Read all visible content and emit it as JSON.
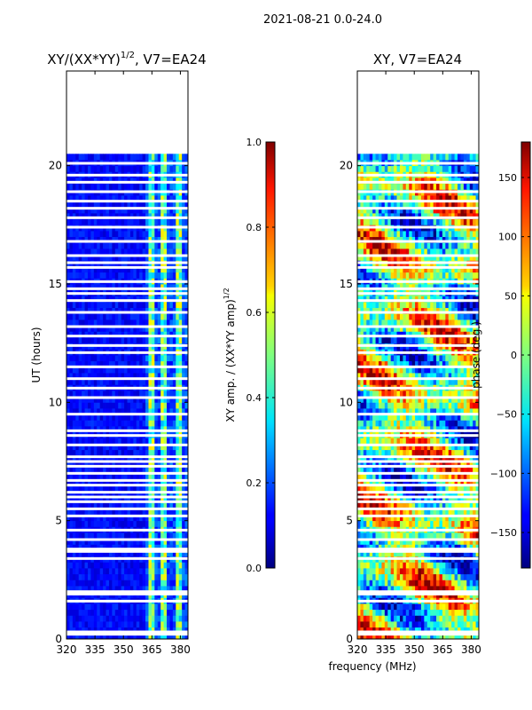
{
  "figure": {
    "suptitle": "2021-08-21 0.0-24.0",
    "xlabel": "frequency (MHz)"
  },
  "chart_data": [
    {
      "type": "heatmap",
      "title_main": "XY/(XX*YY)",
      "title_sup": "1/2",
      "title_tail": ", V7=EA24",
      "ylabel": "UT (hours)",
      "xlim": [
        320,
        384
      ],
      "ylim": [
        0,
        24
      ],
      "xticks": [
        "320",
        "335",
        "350",
        "365",
        "380"
      ],
      "xtick_values": [
        320,
        335,
        350,
        365,
        380
      ],
      "yticks": [
        "0",
        "5",
        "10",
        "15",
        "20"
      ],
      "ytick_values": [
        0,
        5,
        10,
        15,
        20
      ],
      "data_end_hours": 20.5,
      "colorbar": {
        "label_main": "XY amp. / (XX*YY amp)",
        "label_sup": "1/2",
        "range": [
          0.0,
          1.0
        ],
        "ticks": [
          "0.0",
          "0.2",
          "0.4",
          "0.6",
          "0.8",
          "1.0"
        ],
        "tick_values": [
          0.0,
          0.2,
          0.4,
          0.6,
          0.8,
          1.0
        ]
      }
    },
    {
      "type": "heatmap",
      "title": "XY, V7=EA24",
      "xlim": [
        320,
        384
      ],
      "ylim": [
        0,
        24
      ],
      "xticks": [
        "320",
        "335",
        "350",
        "365",
        "380"
      ],
      "xtick_values": [
        320,
        335,
        350,
        365,
        380
      ],
      "yticks": [
        "0",
        "5",
        "10",
        "15",
        "20"
      ],
      "ytick_values": [
        0,
        5,
        10,
        15,
        20
      ],
      "data_end_hours": 20.5,
      "colorbar": {
        "label": "phase (deg.)",
        "range": [
          -180,
          180
        ],
        "ticks": [
          "−150",
          "−100",
          "−50",
          "0",
          "50",
          "100",
          "150"
        ],
        "tick_values": [
          -150,
          -100,
          -50,
          0,
          50,
          100,
          150
        ]
      }
    }
  ],
  "flag_gaps_hours": [
    0.2,
    0.3,
    1.6,
    1.9,
    2.0,
    3.4,
    3.7,
    3.8,
    4.2,
    4.6,
    5.2,
    5.5,
    5.8,
    6.0,
    6.2,
    6.5,
    6.7,
    7.0,
    7.3,
    7.5,
    7.7,
    8.2,
    8.6,
    8.8,
    9.5,
    10.2,
    10.6,
    11.0,
    11.5,
    12.1,
    12.4,
    12.8,
    13.2,
    13.8,
    14.3,
    14.6,
    14.8,
    15.1,
    15.7,
    15.9,
    16.2,
    16.8,
    17.4,
    17.8,
    18.2,
    18.5,
    18.9,
    19.3,
    19.6,
    20.1
  ]
}
